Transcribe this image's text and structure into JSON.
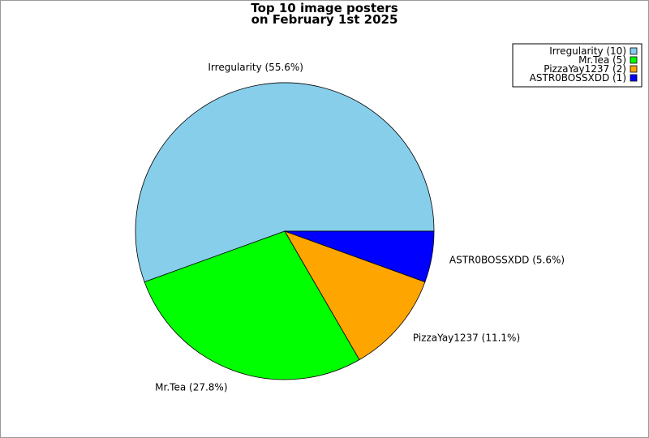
{
  "chart_data": {
    "type": "pie",
    "title_line1": "Top 10 image posters",
    "title_line2": "on February 1st 2025",
    "slices": [
      {
        "name": "Irregularity",
        "value": 10,
        "pct_label": "Irregularity (55.6%)",
        "legend": "Irregularity (10)",
        "color": "#87ceeb"
      },
      {
        "name": "Mr.Tea",
        "value": 5,
        "pct_label": "Mr.Tea (27.8%)",
        "legend": "Mr.Tea (5)",
        "color": "#00ff00"
      },
      {
        "name": "PizzaYay1237",
        "value": 2,
        "pct_label": "PizzaYay1237 (11.1%)",
        "legend": "PizzaYay1237 (2)",
        "color": "#ffa500"
      },
      {
        "name": "ASTR0BOSSXDD",
        "value": 1,
        "pct_label": "ASTR0BOSSXDD (5.6%)",
        "legend": "ASTR0BOSSXDD (1)",
        "color": "#0000ff"
      }
    ],
    "legend_position": "top-right"
  }
}
